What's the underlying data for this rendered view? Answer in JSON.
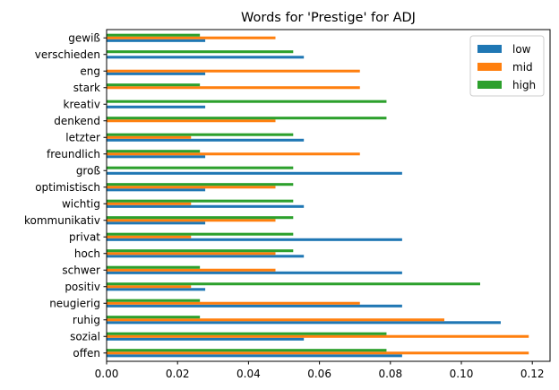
{
  "chart_data": {
    "type": "bar",
    "orientation": "horizontal",
    "title": "Words for 'Prestige' for ADJ",
    "xlabel": "",
    "ylabel": "",
    "xlim": [
      0,
      0.125
    ],
    "xticks": [
      "0.00",
      "0.02",
      "0.04",
      "0.06",
      "0.08",
      "0.10",
      "0.12"
    ],
    "xtick_values": [
      0,
      0.02,
      0.04,
      0.06,
      0.08,
      0.1,
      0.12
    ],
    "grid": false,
    "legend_position": "top-right",
    "categories": [
      "offen",
      "sozial",
      "ruhig",
      "neugierig",
      "positiv",
      "schwer",
      "hoch",
      "privat",
      "kommunikativ",
      "wichtig",
      "optimistisch",
      "groß",
      "freundlich",
      "letzter",
      "denkend",
      "kreativ",
      "stark",
      "eng",
      "verschieden",
      "gewiß"
    ],
    "series": [
      {
        "name": "low",
        "color": "#1f77b4",
        "values": [
          0.0833,
          0.0556,
          0.1111,
          0.0833,
          0.0278,
          0.0833,
          0.0556,
          0.0833,
          0.0278,
          0.0556,
          0.0278,
          0.0833,
          0.0278,
          0.0556,
          0.0,
          0.0278,
          0.0,
          0.0278,
          0.0556,
          0.0278
        ]
      },
      {
        "name": "mid",
        "color": "#ff7f0e",
        "values": [
          0.119,
          0.119,
          0.0952,
          0.0714,
          0.0238,
          0.0476,
          0.0476,
          0.0238,
          0.0476,
          0.0238,
          0.0476,
          0.0,
          0.0714,
          0.0238,
          0.0476,
          0.0,
          0.0714,
          0.0714,
          0.0,
          0.0476
        ]
      },
      {
        "name": "high",
        "color": "#2ca02c",
        "values": [
          0.0789,
          0.0789,
          0.0263,
          0.0263,
          0.1053,
          0.0263,
          0.0526,
          0.0526,
          0.0526,
          0.0526,
          0.0526,
          0.0526,
          0.0263,
          0.0526,
          0.0789,
          0.0789,
          0.0263,
          0.0,
          0.0526,
          0.0263
        ]
      }
    ]
  }
}
